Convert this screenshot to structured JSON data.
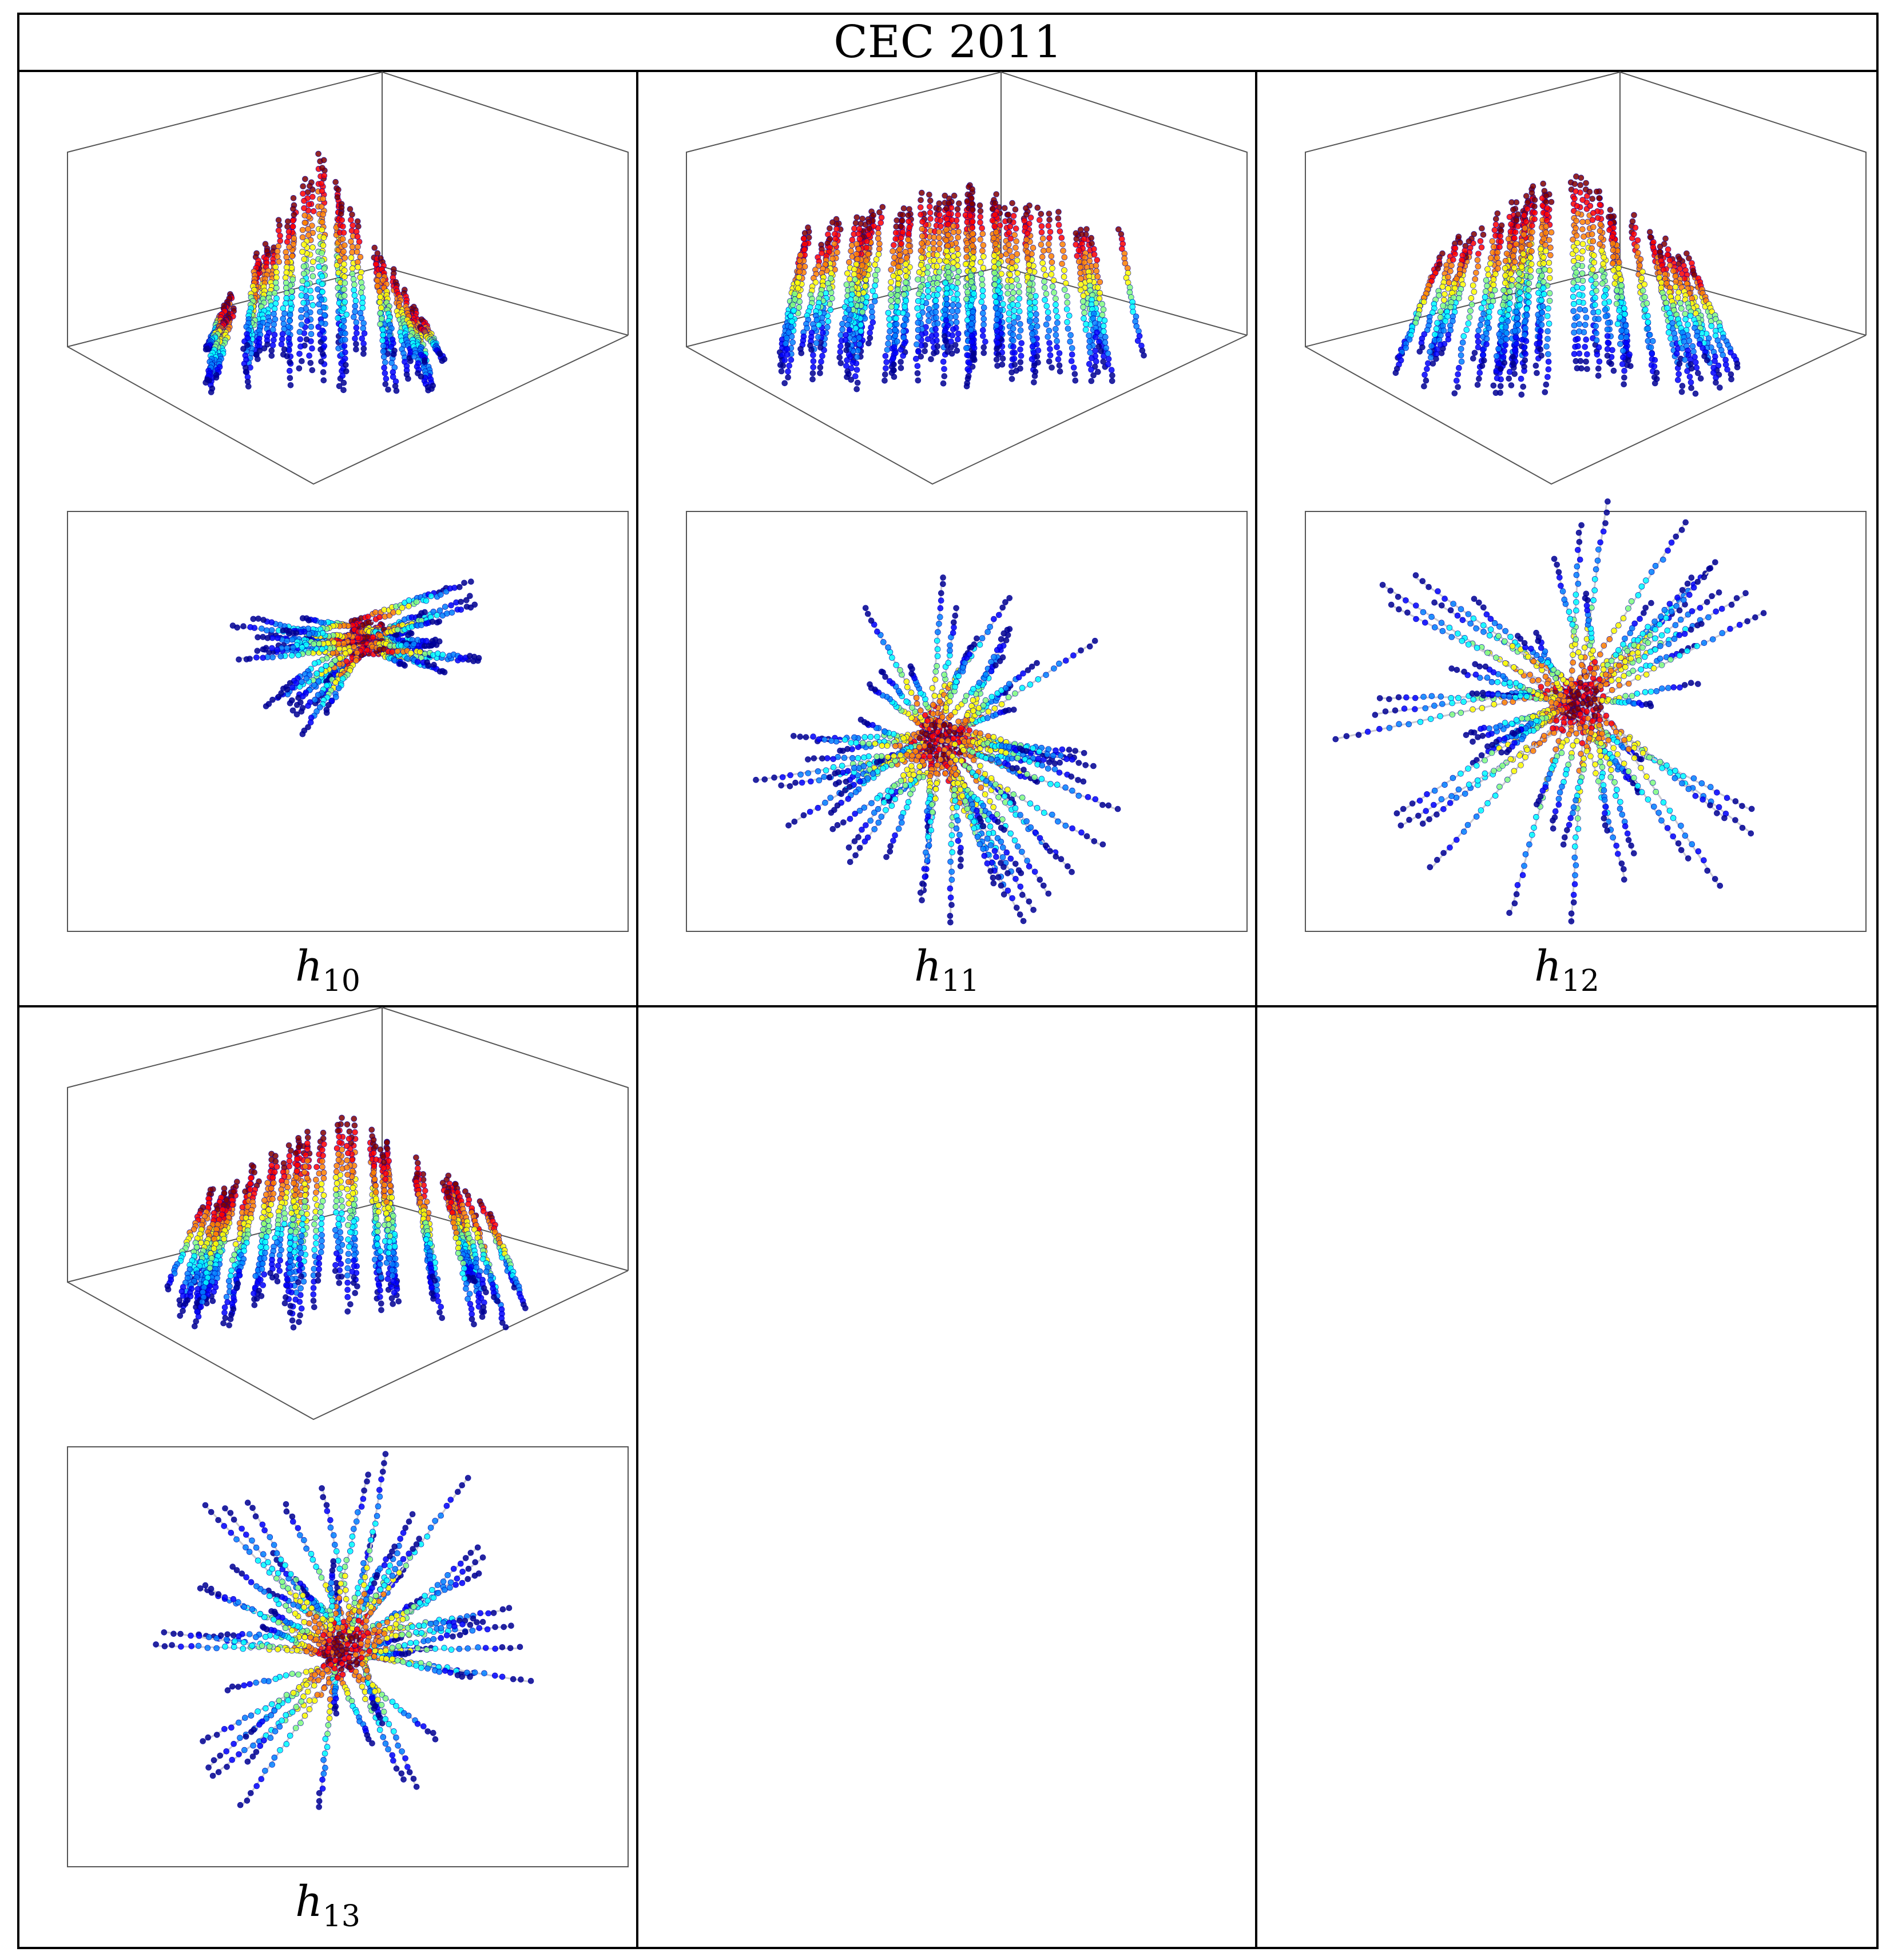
{
  "header": {
    "title": "CEC 2011"
  },
  "panels": [
    {
      "id": "h10",
      "base": "h",
      "sub": "10"
    },
    {
      "id": "h11",
      "base": "h",
      "sub": "11"
    },
    {
      "id": "h12",
      "base": "h",
      "sub": "12"
    },
    {
      "id": "h13",
      "base": "h",
      "sub": "13"
    }
  ],
  "colors": {
    "border": "#000000",
    "axes": "#555555",
    "colormap": [
      "#00008f",
      "#0000ff",
      "#0080ff",
      "#00ffff",
      "#80ff80",
      "#ffff00",
      "#ff8000",
      "#ff0000",
      "#800000"
    ],
    "path": "#c8c8d0"
  }
}
